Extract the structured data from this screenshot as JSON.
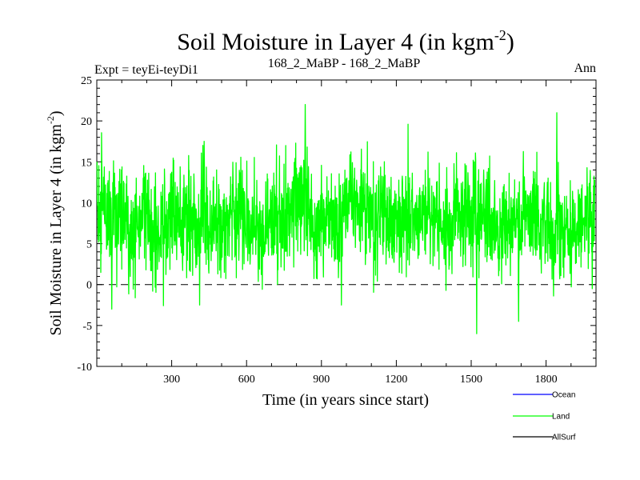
{
  "chart_data": {
    "type": "line",
    "title": "Soil Moisture in Layer 4 (in kgm",
    "title_sup": "-2",
    "title_close": ")",
    "subtitle_left": "Expt = teyEi-teyDi1",
    "subtitle_center": "168_2_MaBP - 168_2_MaBP",
    "subtitle_right": "Ann",
    "xlabel": "Time (in years since start)",
    "ylabel": "Soil Moisture in Layer 4 (in kgm",
    "ylabel_sup": "-2",
    "ylabel_close": ")",
    "xlim": [
      0,
      2000
    ],
    "ylim": [
      -10,
      25
    ],
    "x_ticks": [
      300,
      600,
      900,
      1200,
      1500,
      1800
    ],
    "x_tick_labels": [
      "300",
      "600",
      "900",
      "1200",
      "1500",
      "1800"
    ],
    "y_ticks": [
      -10,
      -5,
      0,
      5,
      10,
      15,
      20,
      25
    ],
    "y_tick_labels": [
      "-10",
      "-5",
      "0",
      "5",
      "10",
      "15",
      "20",
      "25"
    ],
    "zero_line": 0,
    "legend": [
      {
        "name": "Ocean",
        "color": "#0000ff"
      },
      {
        "name": "Land",
        "color": "#00ff00"
      },
      {
        "name": "AllSurf",
        "color": "#000000"
      }
    ],
    "series": [
      {
        "name": "Land",
        "color": "#00ff00",
        "x_start": 1,
        "x_step": 1,
        "n_points": 1995,
        "mean": 8,
        "std": 3.9,
        "seed": 168,
        "key_points": [
          {
            "x": 1,
            "y": 15
          },
          {
            "x": 60,
            "y": -3
          },
          {
            "x": 430,
            "y": 17.5
          },
          {
            "x": 412,
            "y": -2.5
          },
          {
            "x": 835,
            "y": 22
          },
          {
            "x": 980,
            "y": -2.5
          },
          {
            "x": 1522,
            "y": -6
          },
          {
            "x": 1690,
            "y": -4.5
          },
          {
            "x": 1843,
            "y": 21
          },
          {
            "x": 1985,
            "y": -0.5
          }
        ]
      }
    ]
  }
}
